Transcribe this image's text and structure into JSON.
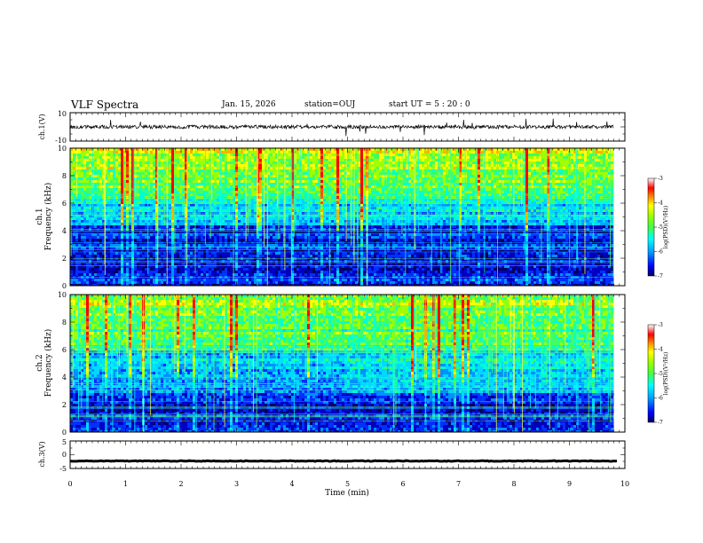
{
  "header": {
    "title": "VLF Spectra",
    "date": "Jan. 15, 2026",
    "station": "station=OUJ",
    "start_ut": "start  UT =  5 : 20 : 0"
  },
  "colors": {
    "colormap": [
      "#000080",
      "#0000ff",
      "#00a0ff",
      "#00ffff",
      "#80ff80",
      "#ffff00",
      "#ff8000",
      "#ff0000",
      "#ffffff"
    ]
  },
  "chart_data": [
    {
      "id": "ch1-waveform",
      "type": "line",
      "ylabel": "ch.1(V)",
      "ylim": [
        -10,
        10
      ],
      "yticks": [
        "10",
        "-10"
      ],
      "xlim": [
        0,
        10
      ],
      "description_values": {
        "baseline": 0,
        "noise_amplitude": 3,
        "spike_amplitude": 8
      }
    },
    {
      "id": "ch1-spectrogram",
      "type": "heatmap",
      "ylabel": "ch.1\nFrequency (kHz)",
      "ylabel_lines": [
        "ch.1",
        "Frequency (kHz)"
      ],
      "ylim": [
        0,
        10
      ],
      "yticks": [
        "0",
        "2",
        "4",
        "6",
        "8",
        "10"
      ],
      "xlim": [
        0,
        10
      ],
      "data_end_min": 9.8,
      "colorbar": {
        "label": "log(PSD)(V²/Hz)",
        "ticks": [
          "-3",
          "-4",
          "-5",
          "-6",
          "-7"
        ],
        "range": [
          -7,
          -3
        ]
      }
    },
    {
      "id": "ch2-spectrogram",
      "type": "heatmap",
      "ylabel": "ch.2\nFrequency (kHz)",
      "ylabel_lines": [
        "ch.2",
        "Frequency (kHz)"
      ],
      "ylim": [
        0,
        10
      ],
      "yticks": [
        "0",
        "2",
        "4",
        "6",
        "8",
        "10"
      ],
      "xlim": [
        0,
        10
      ],
      "data_end_min": 9.8,
      "colorbar": {
        "label": "log(PSD)(V²/Hz)",
        "ticks": [
          "-3",
          "-4",
          "-5",
          "-6",
          "-7"
        ],
        "range": [
          -7,
          -3
        ]
      }
    },
    {
      "id": "ch3-waveform",
      "type": "line",
      "ylabel": "ch.3(V)",
      "ylim": [
        -5,
        5
      ],
      "yticks": [
        "5",
        "0",
        "-5"
      ],
      "xlim": [
        0,
        10
      ],
      "description_values": {
        "baseline": -1,
        "noise_amplitude": 0.3
      }
    }
  ],
  "xaxis": {
    "label": "Time (min)",
    "ticks": [
      "0",
      "1",
      "2",
      "3",
      "4",
      "5",
      "6",
      "7",
      "8",
      "9",
      "10"
    ]
  }
}
